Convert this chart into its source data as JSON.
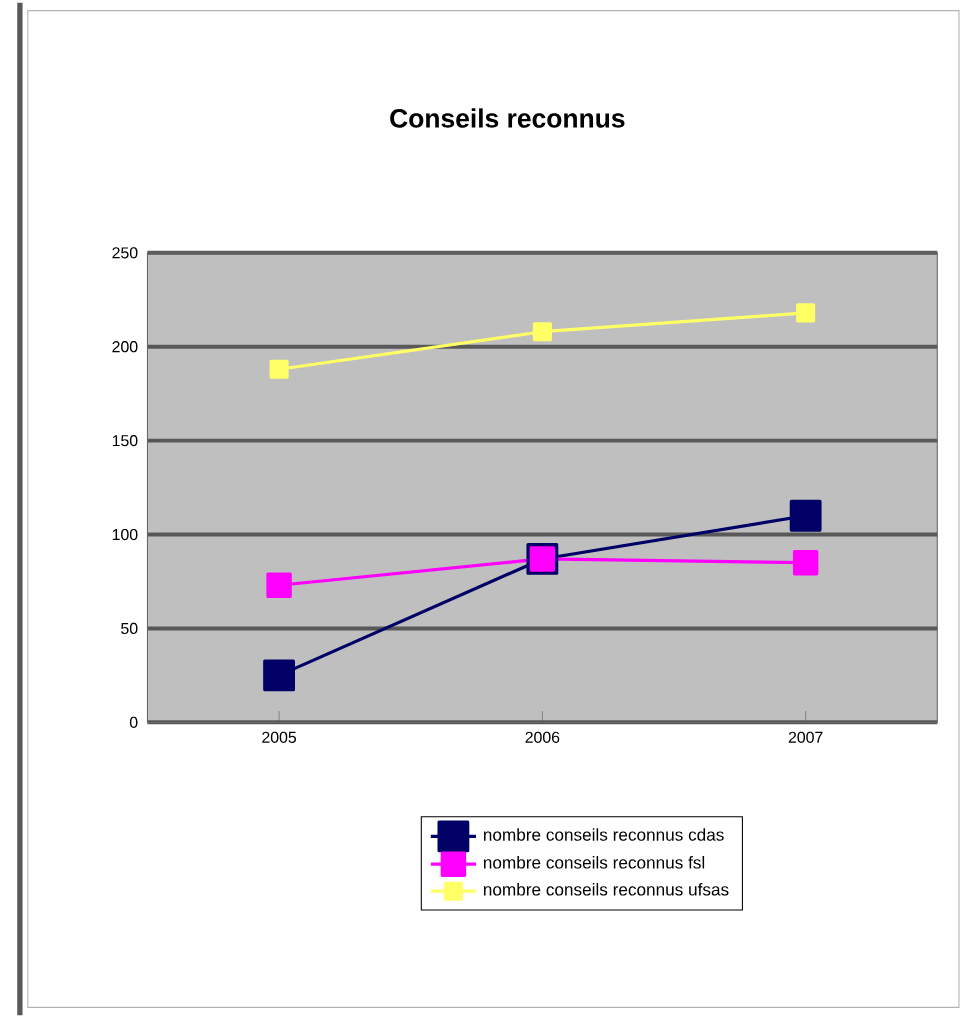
{
  "chart_data": {
    "type": "line",
    "title": "Conseils reconnus",
    "categories": [
      "2005",
      "2006",
      "2007"
    ],
    "series": [
      {
        "name": "nombre conseils reconnus cdas",
        "color": "#000066",
        "values": [
          25,
          87,
          110
        ]
      },
      {
        "name": "nombre conseils reconnus fsl",
        "color": "#ff00ff",
        "values": [
          73,
          87,
          85
        ]
      },
      {
        "name": "nombre conseils reconnus ufsas",
        "color": "#ffff66",
        "values": [
          188,
          208,
          218
        ]
      }
    ],
    "ylim": [
      0,
      250
    ],
    "yticks": [
      0,
      50,
      100,
      150,
      200,
      250
    ],
    "grid": "y",
    "legend": "bottom",
    "marker": "square",
    "line_style": "solid"
  }
}
